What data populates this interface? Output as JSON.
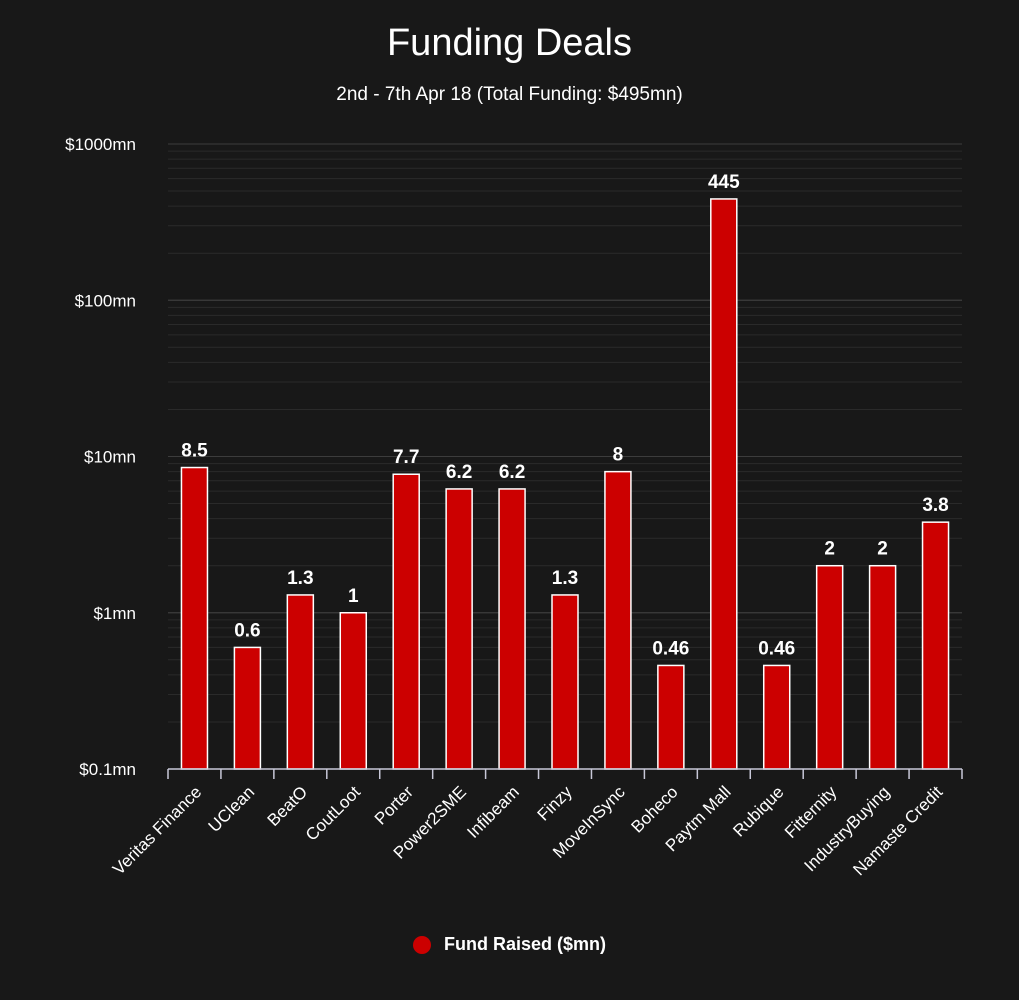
{
  "chart_data": {
    "type": "bar",
    "title": "Funding Deals",
    "subtitle": "2nd - 7th Apr 18 (Total Funding: $495mn)",
    "y_scale": "log",
    "ylim": [
      0.1,
      1000
    ],
    "y_ticks": [
      {
        "value": 0.1,
        "label": "$0.1mn"
      },
      {
        "value": 1,
        "label": "$1mn"
      },
      {
        "value": 10,
        "label": "$10mn"
      },
      {
        "value": 100,
        "label": "$100mn"
      },
      {
        "value": 1000,
        "label": "$1000mn"
      }
    ],
    "categories": [
      "Veritas Finance",
      "UClean",
      "BeatO",
      "CoutLoot",
      "Porter",
      "Power2SME",
      "Infibeam",
      "Finzy",
      "MoveInSync",
      "Boheco",
      "Paytm Mall",
      "Rubique",
      "Fitternity",
      "IndustryBuying",
      "Namaste Credit"
    ],
    "series": [
      {
        "name": "Fund Raised ($mn)",
        "color": "#cc0000",
        "values": [
          8.5,
          0.6,
          1.3,
          1,
          7.7,
          6.2,
          6.2,
          1.3,
          8,
          0.46,
          445,
          0.46,
          2,
          2,
          3.8
        ],
        "labels": [
          "8.5",
          "0.6",
          "1.3",
          "1",
          "7.7",
          "6.2",
          "6.2",
          "1.3",
          "8",
          "0.46",
          "445",
          "0.46",
          "2",
          "2",
          "3.8"
        ]
      }
    ],
    "legend_position": "bottom-center",
    "grid": true
  }
}
